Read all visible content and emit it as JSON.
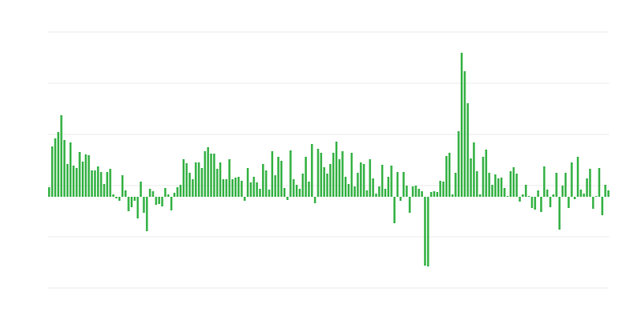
{
  "chart_data": {
    "type": "bar",
    "title": "",
    "xlabel": "",
    "ylabel": "",
    "ylim": [
      -114,
      206
    ],
    "grid": true,
    "grid_step": 64,
    "bar_color": "#3bb44a",
    "grid_color": "#ebebeb",
    "values": [
      12,
      63,
      73,
      81,
      102,
      71,
      41,
      68,
      39,
      36,
      56,
      44,
      53,
      52,
      33,
      33,
      38,
      31,
      16,
      31,
      35,
      3,
      -2,
      -5,
      27,
      8,
      -18,
      -13,
      -5,
      -27,
      19,
      -20,
      -43,
      10,
      7,
      -10,
      -9,
      -12,
      11,
      3,
      -17,
      5,
      12,
      15,
      47,
      42,
      30,
      22,
      43,
      43,
      36,
      57,
      62,
      54,
      54,
      35,
      43,
      22,
      22,
      47,
      22,
      24,
      25,
      20,
      -5,
      36,
      18,
      25,
      18,
      10,
      41,
      33,
      9,
      57,
      27,
      50,
      45,
      11,
      -4,
      58,
      22,
      15,
      10,
      29,
      50,
      19,
      66,
      -8,
      60,
      55,
      37,
      29,
      41,
      55,
      69,
      47,
      57,
      25,
      16,
      55,
      13,
      30,
      43,
      41,
      8,
      47,
      23,
      4,
      13,
      40,
      10,
      25,
      39,
      -33,
      31,
      -5,
      31,
      14,
      -20,
      13,
      14,
      10,
      7,
      -86,
      -87,
      6,
      7,
      6,
      20,
      19,
      51,
      55,
      3,
      30,
      82,
      180,
      157,
      117,
      48,
      68,
      32,
      3,
      50,
      59,
      30,
      15,
      28,
      23,
      24,
      11,
      1,
      32,
      37,
      29,
      -6,
      3,
      15,
      1,
      -14,
      -16,
      8,
      -19,
      38,
      9,
      -13,
      3,
      30,
      -41,
      14,
      30,
      -14,
      43,
      -3,
      50,
      9,
      4,
      23,
      35,
      -15,
      1,
      36,
      -23,
      15,
      8
    ]
  }
}
